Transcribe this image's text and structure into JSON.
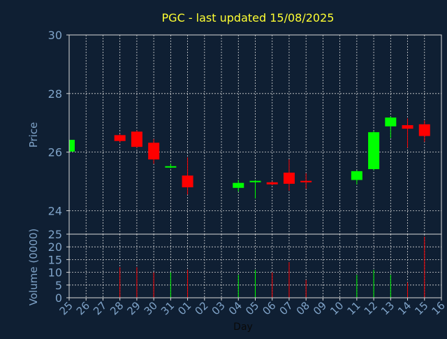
{
  "colors": {
    "background": "#0f1f33",
    "title": "#ffff33",
    "axis_text": "#7fa3c8",
    "grid": "#d8d8d8",
    "frame": "#d8d8d8",
    "up": "#00ff00",
    "down": "#ff0000"
  },
  "chart_data": {
    "type": "candlestick",
    "title": "PGC - last updated 15/08/2025",
    "xlabel": "Day",
    "ylabel": "Price",
    "y2label": "Volume (0000)",
    "ylim": [
      23.2,
      30
    ],
    "yticks": [
      24,
      26,
      28,
      30
    ],
    "vol_ylim": [
      0,
      25
    ],
    "vol_ticks": [
      0,
      5,
      10,
      15,
      20,
      25
    ],
    "grid": true,
    "days": [
      "25",
      "26",
      "27",
      "28",
      "29",
      "30",
      "31",
      "01",
      "02",
      "03",
      "04",
      "05",
      "06",
      "07",
      "08",
      "09",
      "10",
      "11",
      "12",
      "13",
      "14",
      "15",
      "16"
    ],
    "candles": [
      {
        "day": "25",
        "open": 26.02,
        "close": 26.42,
        "high": 26.42,
        "low": 26.02,
        "volume": 0
      },
      {
        "day": "28",
        "open": 26.58,
        "close": 26.38,
        "high": 26.62,
        "low": 26.33,
        "volume": 12
      },
      {
        "day": "29",
        "open": 26.7,
        "close": 26.18,
        "high": 26.74,
        "low": 26.15,
        "volume": 12
      },
      {
        "day": "30",
        "open": 26.32,
        "close": 25.75,
        "high": 26.45,
        "low": 25.6,
        "volume": 10
      },
      {
        "day": "31",
        "open": 25.48,
        "close": 25.52,
        "high": 25.6,
        "low": 25.45,
        "volume": 10
      },
      {
        "day": "01",
        "open": 25.2,
        "close": 24.8,
        "high": 25.82,
        "low": 24.55,
        "volume": 11
      },
      {
        "day": "04",
        "open": 24.78,
        "close": 24.95,
        "high": 25.05,
        "low": 24.65,
        "volume": 9
      },
      {
        "day": "05",
        "open": 24.98,
        "close": 25.02,
        "high": 25.05,
        "low": 24.42,
        "volume": 11
      },
      {
        "day": "06",
        "open": 24.97,
        "close": 24.9,
        "high": 25.0,
        "low": 24.87,
        "volume": 10
      },
      {
        "day": "07",
        "open": 25.3,
        "close": 24.92,
        "high": 25.75,
        "low": 24.68,
        "volume": 14
      },
      {
        "day": "08",
        "open": 25.02,
        "close": 24.97,
        "high": 25.28,
        "low": 24.75,
        "volume": 7
      },
      {
        "day": "11",
        "open": 25.05,
        "close": 25.35,
        "high": 25.38,
        "low": 24.9,
        "volume": 9
      },
      {
        "day": "12",
        "open": 25.42,
        "close": 26.68,
        "high": 26.72,
        "low": 25.38,
        "volume": 11
      },
      {
        "day": "13",
        "open": 26.88,
        "close": 27.18,
        "high": 27.22,
        "low": 26.48,
        "volume": 9
      },
      {
        "day": "14",
        "open": 26.92,
        "close": 26.8,
        "high": 27.15,
        "low": 26.15,
        "volume": 6
      },
      {
        "day": "15",
        "open": 26.95,
        "close": 26.55,
        "high": 27.08,
        "low": 26.35,
        "volume": 24
      }
    ]
  }
}
